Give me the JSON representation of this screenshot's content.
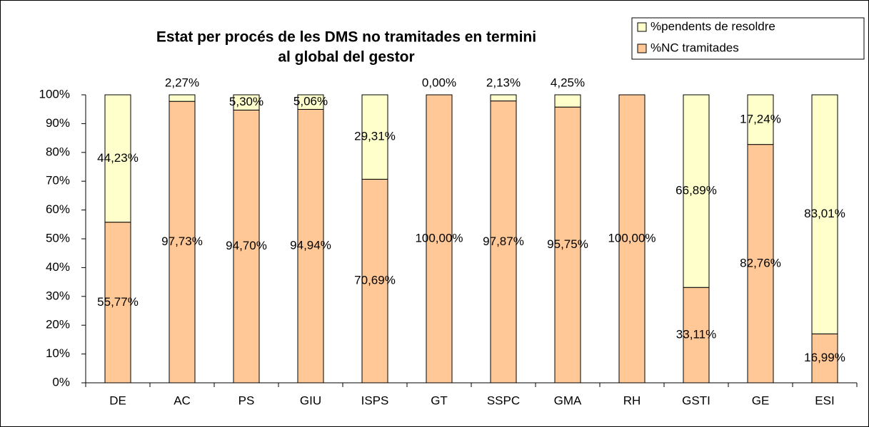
{
  "chart_data": {
    "type": "stacked_bar",
    "title": [
      "Estat per procés de les DMS no tramitades en termini",
      "al global del gestor"
    ],
    "categories": [
      "DE",
      "AC",
      "PS",
      "GIU",
      "ISPS",
      "GT",
      "SSPC",
      "GMA",
      "RH",
      "GSTI",
      "GE",
      "ESI"
    ],
    "series": [
      {
        "name": "%NC tramitades",
        "color": "#ffc896",
        "values": [
          55.77,
          97.73,
          94.7,
          94.94,
          70.69,
          100.0,
          97.87,
          95.75,
          100.0,
          33.11,
          82.76,
          16.99
        ],
        "value_labels": [
          "55,77%",
          "97,73%",
          "94,70%",
          "94,94%",
          "70,69%",
          "100,00%",
          "97,87%",
          "95,75%",
          "100,00%",
          "33,11%",
          "82,76%",
          "16,99%"
        ]
      },
      {
        "name": "%pendents de resoldre",
        "color": "#ffffcc",
        "values": [
          44.23,
          2.27,
          5.3,
          5.06,
          29.31,
          0.0,
          2.13,
          4.25,
          0,
          66.89,
          17.24,
          83.01
        ],
        "value_labels": [
          "44,23%",
          "2,27%",
          "5,30%",
          "5,06%",
          "29,31%",
          "0,00%",
          "2,13%",
          "4,25%",
          null,
          "66,89%",
          "17,24%",
          "83,01%"
        ]
      }
    ],
    "ylim": [
      0,
      100
    ],
    "yticks": [
      {
        "value": 0,
        "label": "0%"
      },
      {
        "value": 10,
        "label": "10%"
      },
      {
        "value": 20,
        "label": "20%"
      },
      {
        "value": 30,
        "label": "30%"
      },
      {
        "value": 40,
        "label": "40%"
      },
      {
        "value": 50,
        "label": "50%"
      },
      {
        "value": 60,
        "label": "60%"
      },
      {
        "value": 70,
        "label": "70%"
      },
      {
        "value": 80,
        "label": "80%"
      },
      {
        "value": 90,
        "label": "90%"
      },
      {
        "value": 100,
        "label": "100%"
      }
    ],
    "legend": "top-right"
  }
}
